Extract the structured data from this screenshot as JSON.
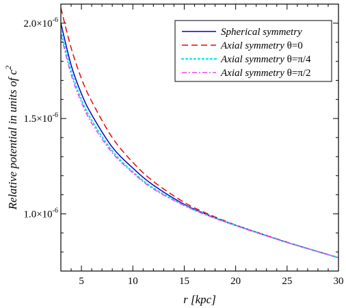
{
  "chart_data": {
    "type": "line",
    "xlabel": "r [kpc]",
    "ylabel": "Relative potential in units of c",
    "ylabel_sup": "2",
    "xlim": [
      3,
      30
    ],
    "ylim": [
      7e-07,
      2.1e-06
    ],
    "xticks": [
      5,
      10,
      15,
      20,
      25,
      30
    ],
    "yticks": [
      {
        "value": 1e-06,
        "base": "1.0×10",
        "exp": "-6"
      },
      {
        "value": 1.5e-06,
        "base": "1.5×10",
        "exp": "-6"
      },
      {
        "value": 2e-06,
        "base": "2.0×10",
        "exp": "-6"
      }
    ],
    "grid": false,
    "legend_position": "top-right",
    "x": [
      3,
      4,
      5,
      6,
      8,
      10,
      12,
      15,
      17.5,
      20,
      22.5,
      25,
      27.5,
      30
    ],
    "series": [
      {
        "name": "Spherical symmetry",
        "name_prefix": "Spherical symmetry",
        "name_symbol": "",
        "color": "#0000cc",
        "dash": "solid",
        "values": [
          2e-06,
          1.78e-06,
          1.63e-06,
          1.52e-06,
          1.35e-06,
          1.24e-06,
          1.15e-06,
          1.05e-06,
          9.9e-07,
          9.4e-07,
          8.95e-07,
          8.5e-07,
          8.1e-07,
          7.7e-07
        ]
      },
      {
        "name": "Axial symmetry θ=0",
        "name_prefix": "Axial symmetry ",
        "name_symbol": "θ=0",
        "color": "#ee0000",
        "dash": "dashed",
        "values": [
          2.08e-06,
          1.87e-06,
          1.71e-06,
          1.59e-06,
          1.4e-06,
          1.27e-06,
          1.17e-06,
          1.06e-06,
          9.95e-07,
          9.42e-07,
          8.96e-07,
          8.52e-07,
          8.1e-07,
          7.7e-07
        ]
      },
      {
        "name": "Axial symmetry θ=π/4",
        "name_prefix": "Axial symmetry ",
        "name_symbol": "θ=π/4",
        "color": "#00e5ee",
        "dash": "dotted",
        "values": [
          1.96e-06,
          1.75e-06,
          1.6e-06,
          1.49e-06,
          1.33e-06,
          1.22e-06,
          1.135e-06,
          1.045e-06,
          9.88e-07,
          9.4e-07,
          8.94e-07,
          8.5e-07,
          8.1e-07,
          7.7e-07
        ]
      },
      {
        "name": "Axial symmetry θ=π/2",
        "name_prefix": "Axial symmetry ",
        "name_symbol": "θ=π/2",
        "color": "#ee44ee",
        "dash": "dashdot",
        "values": [
          1.94e-06,
          1.73e-06,
          1.585e-06,
          1.475e-06,
          1.32e-06,
          1.215e-06,
          1.13e-06,
          1.043e-06,
          9.86e-07,
          9.38e-07,
          8.93e-07,
          8.5e-07,
          8.1e-07,
          7.7e-07
        ]
      }
    ]
  }
}
